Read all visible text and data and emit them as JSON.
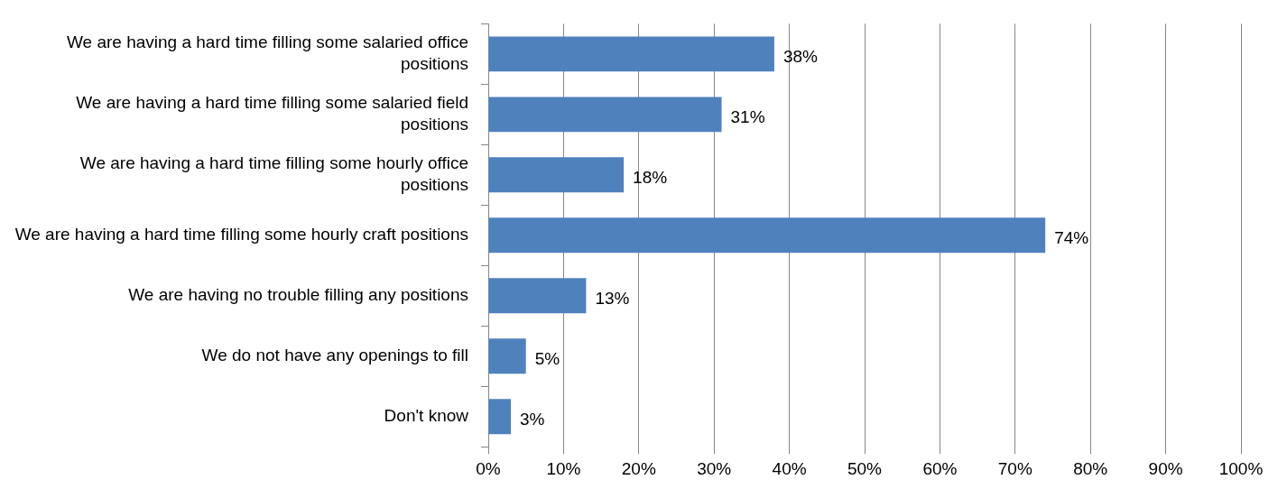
{
  "chart_data": {
    "type": "bar",
    "orientation": "horizontal",
    "categories": [
      "We are having a hard time filling some salaried office positions",
      "We are having a hard time filling some salaried field positions",
      "We are having a hard time filling some hourly office positions",
      "We are having a hard time filling some hourly craft positions",
      "We are having no trouble filling any positions",
      "We do not have any openings to fill",
      "Don't know"
    ],
    "values": [
      38,
      31,
      18,
      74,
      13,
      5,
      3
    ],
    "value_labels": [
      "38%",
      "31%",
      "18%",
      "74%",
      "13%",
      "5%",
      "3%"
    ],
    "color": "#4f81bd",
    "xlim": [
      0,
      100
    ],
    "xticks": [
      {
        "value": 0,
        "label": "0%"
      },
      {
        "value": 10,
        "label": "10%"
      },
      {
        "value": 20,
        "label": "20%"
      },
      {
        "value": 30,
        "label": "30%"
      },
      {
        "value": 40,
        "label": "40%"
      },
      {
        "value": 50,
        "label": "50%"
      },
      {
        "value": 60,
        "label": "60%"
      },
      {
        "value": 70,
        "label": "70%"
      },
      {
        "value": 80,
        "label": "80%"
      },
      {
        "value": 90,
        "label": "90%"
      },
      {
        "value": 100,
        "label": "100%"
      }
    ],
    "grid": "x",
    "legend": false
  }
}
